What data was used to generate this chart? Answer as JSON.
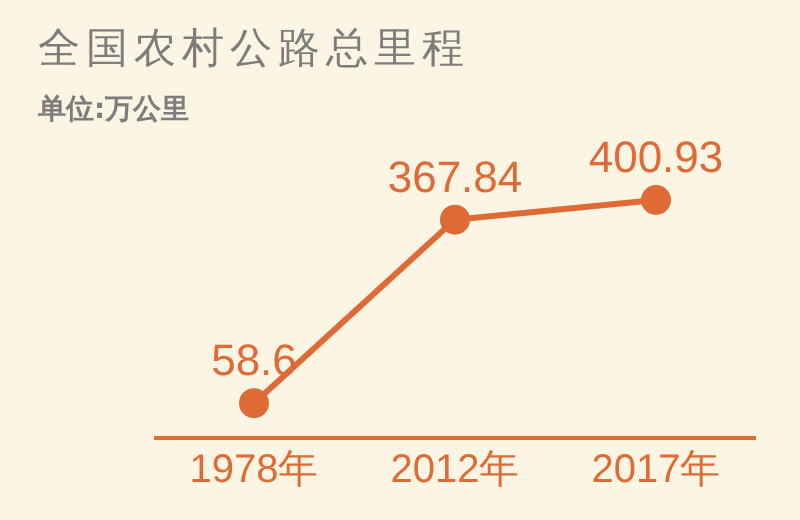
{
  "chart_data": {
    "type": "line",
    "title": "全国农村公路总里程",
    "subtitle": "单位:万公里",
    "categories": [
      "1978年",
      "2012年",
      "2017年"
    ],
    "series": [
      {
        "color": "#e06a35",
        "values": [
          58.6,
          367.84,
          400.93
        ]
      }
    ],
    "data_labels": true,
    "marker": "circle"
  }
}
